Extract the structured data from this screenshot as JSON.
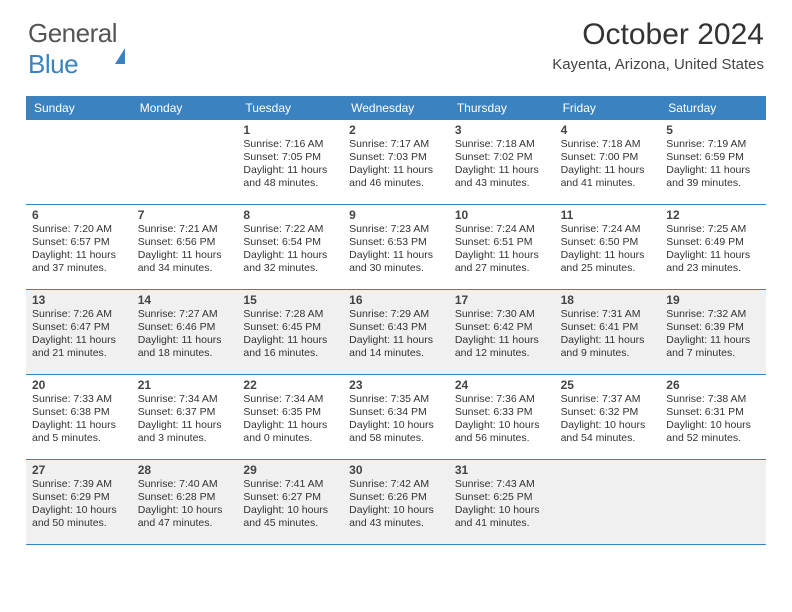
{
  "logo": {
    "part1": "General",
    "part2": "Blue"
  },
  "title": "October 2024",
  "location": "Kayenta, Arizona, United States",
  "colors": {
    "accent": "#3b83c0",
    "shaded": "#f0f0f0",
    "text": "#333333"
  },
  "dayNames": [
    "Sunday",
    "Monday",
    "Tuesday",
    "Wednesday",
    "Thursday",
    "Friday",
    "Saturday"
  ],
  "layout": {
    "columns": 7,
    "rows": 5,
    "cell_min_height": 84
  },
  "weeks": [
    [
      null,
      null,
      {
        "n": "1",
        "sr": "Sunrise: 7:16 AM",
        "ss": "Sunset: 7:05 PM",
        "dl": "Daylight: 11 hours and 48 minutes."
      },
      {
        "n": "2",
        "sr": "Sunrise: 7:17 AM",
        "ss": "Sunset: 7:03 PM",
        "dl": "Daylight: 11 hours and 46 minutes."
      },
      {
        "n": "3",
        "sr": "Sunrise: 7:18 AM",
        "ss": "Sunset: 7:02 PM",
        "dl": "Daylight: 11 hours and 43 minutes."
      },
      {
        "n": "4",
        "sr": "Sunrise: 7:18 AM",
        "ss": "Sunset: 7:00 PM",
        "dl": "Daylight: 11 hours and 41 minutes."
      },
      {
        "n": "5",
        "sr": "Sunrise: 7:19 AM",
        "ss": "Sunset: 6:59 PM",
        "dl": "Daylight: 11 hours and 39 minutes."
      }
    ],
    [
      {
        "n": "6",
        "sr": "Sunrise: 7:20 AM",
        "ss": "Sunset: 6:57 PM",
        "dl": "Daylight: 11 hours and 37 minutes."
      },
      {
        "n": "7",
        "sr": "Sunrise: 7:21 AM",
        "ss": "Sunset: 6:56 PM",
        "dl": "Daylight: 11 hours and 34 minutes."
      },
      {
        "n": "8",
        "sr": "Sunrise: 7:22 AM",
        "ss": "Sunset: 6:54 PM",
        "dl": "Daylight: 11 hours and 32 minutes."
      },
      {
        "n": "9",
        "sr": "Sunrise: 7:23 AM",
        "ss": "Sunset: 6:53 PM",
        "dl": "Daylight: 11 hours and 30 minutes."
      },
      {
        "n": "10",
        "sr": "Sunrise: 7:24 AM",
        "ss": "Sunset: 6:51 PM",
        "dl": "Daylight: 11 hours and 27 minutes."
      },
      {
        "n": "11",
        "sr": "Sunrise: 7:24 AM",
        "ss": "Sunset: 6:50 PM",
        "dl": "Daylight: 11 hours and 25 minutes."
      },
      {
        "n": "12",
        "sr": "Sunrise: 7:25 AM",
        "ss": "Sunset: 6:49 PM",
        "dl": "Daylight: 11 hours and 23 minutes."
      }
    ],
    [
      {
        "n": "13",
        "sr": "Sunrise: 7:26 AM",
        "ss": "Sunset: 6:47 PM",
        "dl": "Daylight: 11 hours and 21 minutes."
      },
      {
        "n": "14",
        "sr": "Sunrise: 7:27 AM",
        "ss": "Sunset: 6:46 PM",
        "dl": "Daylight: 11 hours and 18 minutes."
      },
      {
        "n": "15",
        "sr": "Sunrise: 7:28 AM",
        "ss": "Sunset: 6:45 PM",
        "dl": "Daylight: 11 hours and 16 minutes."
      },
      {
        "n": "16",
        "sr": "Sunrise: 7:29 AM",
        "ss": "Sunset: 6:43 PM",
        "dl": "Daylight: 11 hours and 14 minutes."
      },
      {
        "n": "17",
        "sr": "Sunrise: 7:30 AM",
        "ss": "Sunset: 6:42 PM",
        "dl": "Daylight: 11 hours and 12 minutes."
      },
      {
        "n": "18",
        "sr": "Sunrise: 7:31 AM",
        "ss": "Sunset: 6:41 PM",
        "dl": "Daylight: 11 hours and 9 minutes."
      },
      {
        "n": "19",
        "sr": "Sunrise: 7:32 AM",
        "ss": "Sunset: 6:39 PM",
        "dl": "Daylight: 11 hours and 7 minutes."
      }
    ],
    [
      {
        "n": "20",
        "sr": "Sunrise: 7:33 AM",
        "ss": "Sunset: 6:38 PM",
        "dl": "Daylight: 11 hours and 5 minutes."
      },
      {
        "n": "21",
        "sr": "Sunrise: 7:34 AM",
        "ss": "Sunset: 6:37 PM",
        "dl": "Daylight: 11 hours and 3 minutes."
      },
      {
        "n": "22",
        "sr": "Sunrise: 7:34 AM",
        "ss": "Sunset: 6:35 PM",
        "dl": "Daylight: 11 hours and 0 minutes."
      },
      {
        "n": "23",
        "sr": "Sunrise: 7:35 AM",
        "ss": "Sunset: 6:34 PM",
        "dl": "Daylight: 10 hours and 58 minutes."
      },
      {
        "n": "24",
        "sr": "Sunrise: 7:36 AM",
        "ss": "Sunset: 6:33 PM",
        "dl": "Daylight: 10 hours and 56 minutes."
      },
      {
        "n": "25",
        "sr": "Sunrise: 7:37 AM",
        "ss": "Sunset: 6:32 PM",
        "dl": "Daylight: 10 hours and 54 minutes."
      },
      {
        "n": "26",
        "sr": "Sunrise: 7:38 AM",
        "ss": "Sunset: 6:31 PM",
        "dl": "Daylight: 10 hours and 52 minutes."
      }
    ],
    [
      {
        "n": "27",
        "sr": "Sunrise: 7:39 AM",
        "ss": "Sunset: 6:29 PM",
        "dl": "Daylight: 10 hours and 50 minutes."
      },
      {
        "n": "28",
        "sr": "Sunrise: 7:40 AM",
        "ss": "Sunset: 6:28 PM",
        "dl": "Daylight: 10 hours and 47 minutes."
      },
      {
        "n": "29",
        "sr": "Sunrise: 7:41 AM",
        "ss": "Sunset: 6:27 PM",
        "dl": "Daylight: 10 hours and 45 minutes."
      },
      {
        "n": "30",
        "sr": "Sunrise: 7:42 AM",
        "ss": "Sunset: 6:26 PM",
        "dl": "Daylight: 10 hours and 43 minutes."
      },
      {
        "n": "31",
        "sr": "Sunrise: 7:43 AM",
        "ss": "Sunset: 6:25 PM",
        "dl": "Daylight: 10 hours and 41 minutes."
      },
      null,
      null
    ]
  ]
}
